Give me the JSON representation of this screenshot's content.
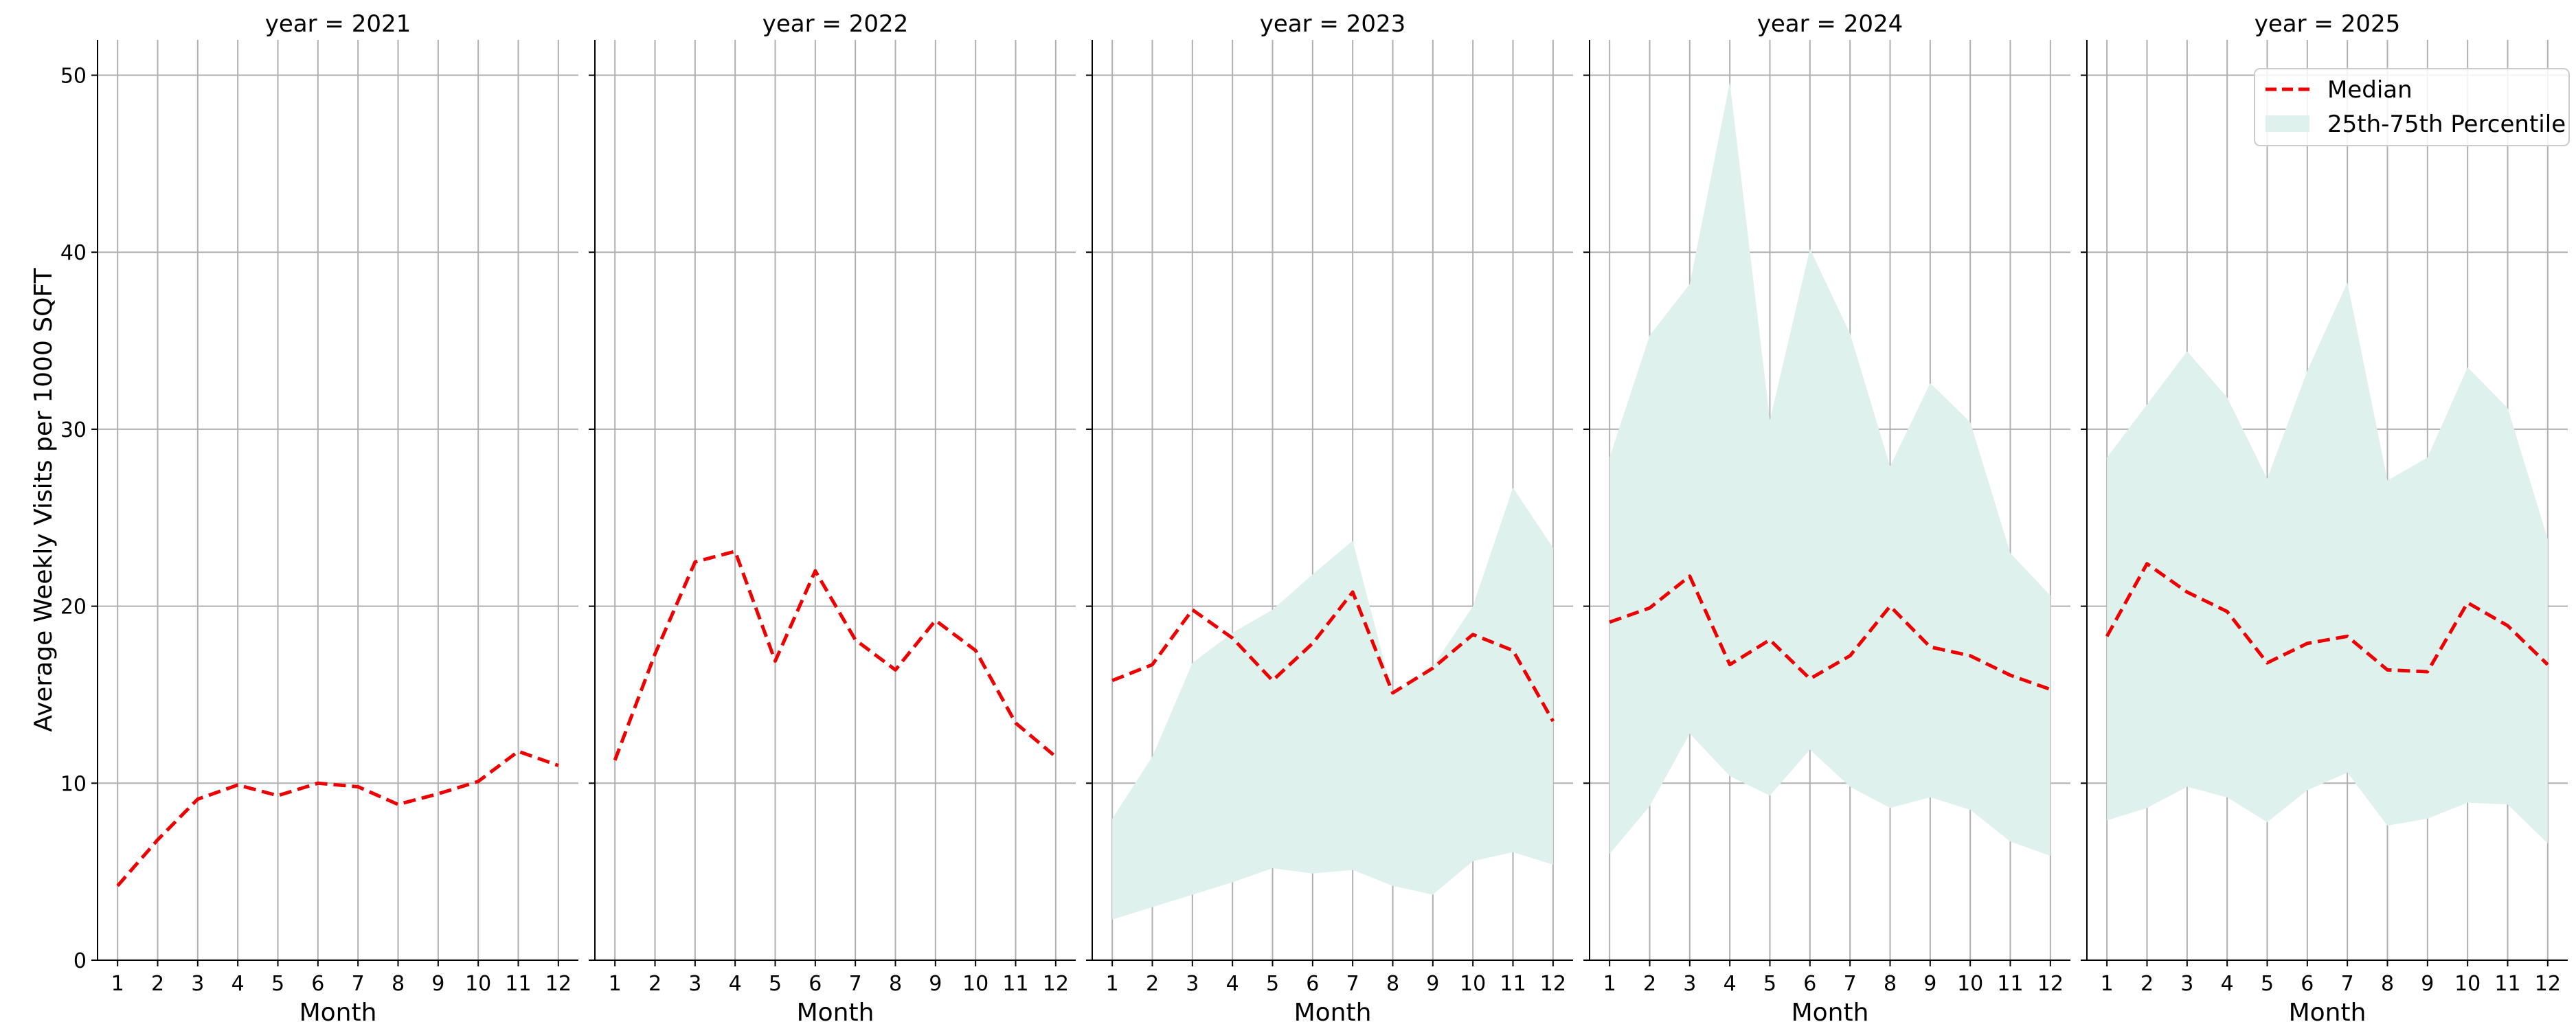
{
  "chart_data": {
    "type": "line",
    "ylabel": "Average Weekly Visits per 1000 SQFT",
    "xlabel": "Month",
    "ylim": [
      0,
      52
    ],
    "xlim": [
      0.5,
      12.5
    ],
    "x": [
      1,
      2,
      3,
      4,
      5,
      6,
      7,
      8,
      9,
      10,
      11,
      12
    ],
    "yticks": [
      0,
      10,
      20,
      30,
      40,
      50
    ],
    "grid": true,
    "legend": {
      "position": "top-right",
      "entries": [
        "Median",
        "25th-75th Percentile"
      ]
    },
    "colors": {
      "median": "#ee0000",
      "band": "#dff1ec"
    },
    "facets": [
      {
        "title": "year = 2021",
        "median": [
          4.2,
          6.8,
          9.1,
          9.9,
          9.3,
          10.0,
          9.8,
          8.8,
          9.4,
          10.1,
          11.8,
          11.0
        ],
        "p25": null,
        "p75": null
      },
      {
        "title": "year = 2022",
        "median": [
          11.3,
          17.3,
          22.5,
          23.1,
          16.9,
          22.0,
          18.1,
          16.4,
          19.2,
          17.5,
          13.4,
          11.5
        ],
        "p25": null,
        "p75": null
      },
      {
        "title": "year = 2023",
        "median": [
          15.8,
          16.7,
          19.8,
          18.2,
          15.8,
          17.9,
          20.8,
          15.1,
          16.5,
          18.4,
          17.5,
          13.5
        ],
        "p25": [
          2.3,
          3.0,
          3.7,
          4.4,
          5.2,
          4.9,
          5.1,
          4.2,
          3.7,
          5.6,
          6.1,
          5.4
        ],
        "p75": [
          8.0,
          11.5,
          16.8,
          18.5,
          19.8,
          21.8,
          23.7,
          15.0,
          16.6,
          20.0,
          26.7,
          23.3
        ]
      },
      {
        "title": "year = 2024",
        "median": [
          19.1,
          19.9,
          21.7,
          16.7,
          18.1,
          15.9,
          17.2,
          20.0,
          17.7,
          17.2,
          16.1,
          15.3
        ],
        "p25": [
          6.0,
          8.7,
          12.8,
          10.4,
          9.3,
          11.9,
          9.8,
          8.6,
          9.2,
          8.5,
          6.7,
          5.9
        ],
        "p75": [
          28.4,
          35.3,
          38.2,
          49.6,
          30.5,
          40.2,
          35.4,
          27.9,
          32.6,
          30.4,
          23.0,
          20.6
        ]
      },
      {
        "title": "year = 2025",
        "median": [
          18.3,
          22.4,
          20.8,
          19.7,
          16.8,
          17.9,
          18.3,
          16.4,
          16.3,
          20.2,
          18.9,
          16.7
        ],
        "p25": [
          7.9,
          8.6,
          9.8,
          9.2,
          7.8,
          9.6,
          10.6,
          7.6,
          8.0,
          8.9,
          8.8,
          6.6
        ],
        "p75": [
          28.4,
          31.4,
          34.4,
          31.8,
          27.2,
          33.3,
          38.3,
          27.1,
          28.4,
          33.5,
          31.2,
          23.8
        ]
      }
    ]
  }
}
